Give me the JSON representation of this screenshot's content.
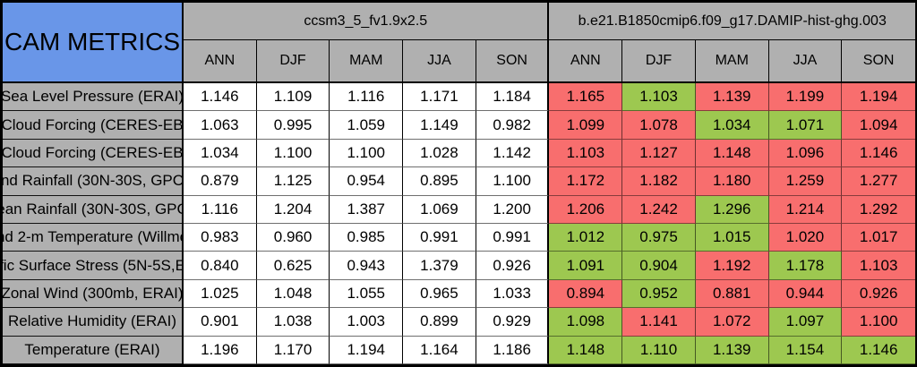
{
  "title": "CAM METRICS",
  "colors": {
    "title_blue": "#6996e8",
    "panel_gray": "#b0b0b0",
    "worse_red": "#f86e6e",
    "better_green": "#9dc850"
  },
  "chart_data": {
    "type": "table",
    "title": "CAM METRICS",
    "groups": [
      {
        "name": "ccsm3_5_fv1.9x2.5",
        "seasons": [
          "ANN",
          "DJF",
          "MAM",
          "JJA",
          "SON"
        ]
      },
      {
        "name": "b.e21.B1850cmip6.f09_g17.DAMIP-hist-ghg.003",
        "seasons": [
          "ANN",
          "DJF",
          "MAM",
          "JJA",
          "SON"
        ]
      }
    ],
    "cell_color_legend": {
      "red": "#f86e6e",
      "green": "#9dc850"
    },
    "rows": [
      {
        "label": "Sea Level Pressure (ERAI)",
        "model1": [
          "1.146",
          "1.109",
          "1.116",
          "1.171",
          "1.184"
        ],
        "model2": [
          {
            "v": "1.165",
            "c": "red"
          },
          {
            "v": "1.103",
            "c": "green"
          },
          {
            "v": "1.139",
            "c": "red"
          },
          {
            "v": "1.199",
            "c": "red"
          },
          {
            "v": "1.194",
            "c": "red"
          }
        ]
      },
      {
        "label": "Cloud Forcing (CERES-EB",
        "model1": [
          "1.063",
          "0.995",
          "1.059",
          "1.149",
          "0.982"
        ],
        "model2": [
          {
            "v": "1.099",
            "c": "red"
          },
          {
            "v": "1.078",
            "c": "red"
          },
          {
            "v": "1.034",
            "c": "green"
          },
          {
            "v": "1.071",
            "c": "green"
          },
          {
            "v": "1.094",
            "c": "red"
          }
        ]
      },
      {
        "label": "Cloud Forcing (CERES-EB",
        "model1": [
          "1.034",
          "1.100",
          "1.100",
          "1.028",
          "1.142"
        ],
        "model2": [
          {
            "v": "1.103",
            "c": "red"
          },
          {
            "v": "1.127",
            "c": "red"
          },
          {
            "v": "1.148",
            "c": "red"
          },
          {
            "v": "1.096",
            "c": "red"
          },
          {
            "v": "1.146",
            "c": "red"
          }
        ]
      },
      {
        "label": "nd Rainfall (30N-30S, GPC",
        "model1": [
          "0.879",
          "1.125",
          "0.954",
          "0.895",
          "1.100"
        ],
        "model2": [
          {
            "v": "1.172",
            "c": "red"
          },
          {
            "v": "1.182",
            "c": "red"
          },
          {
            "v": "1.180",
            "c": "red"
          },
          {
            "v": "1.259",
            "c": "red"
          },
          {
            "v": "1.277",
            "c": "red"
          }
        ]
      },
      {
        "label": "ean Rainfall (30N-30S, GPC",
        "model1": [
          "1.116",
          "1.204",
          "1.387",
          "1.069",
          "1.200"
        ],
        "model2": [
          {
            "v": "1.206",
            "c": "red"
          },
          {
            "v": "1.242",
            "c": "red"
          },
          {
            "v": "1.296",
            "c": "green"
          },
          {
            "v": "1.214",
            "c": "red"
          },
          {
            "v": "1.292",
            "c": "red"
          }
        ]
      },
      {
        "label": "nd 2-m Temperature (Willmo",
        "model1": [
          "0.983",
          "0.960",
          "0.985",
          "0.991",
          "0.991"
        ],
        "model2": [
          {
            "v": "1.012",
            "c": "green"
          },
          {
            "v": "0.975",
            "c": "green"
          },
          {
            "v": "1.015",
            "c": "green"
          },
          {
            "v": "1.020",
            "c": "red"
          },
          {
            "v": "1.017",
            "c": "red"
          }
        ]
      },
      {
        "label": "fic Surface Stress (5N-5S,E",
        "model1": [
          "0.840",
          "0.625",
          "0.943",
          "1.379",
          "0.926"
        ],
        "model2": [
          {
            "v": "1.091",
            "c": "green"
          },
          {
            "v": "0.904",
            "c": "green"
          },
          {
            "v": "1.192",
            "c": "red"
          },
          {
            "v": "1.178",
            "c": "green"
          },
          {
            "v": "1.103",
            "c": "red"
          }
        ]
      },
      {
        "label": "Zonal Wind (300mb, ERAI)",
        "model1": [
          "1.025",
          "1.048",
          "1.055",
          "0.965",
          "1.033"
        ],
        "model2": [
          {
            "v": "0.894",
            "c": "red"
          },
          {
            "v": "0.952",
            "c": "green"
          },
          {
            "v": "0.881",
            "c": "red"
          },
          {
            "v": "0.944",
            "c": "red"
          },
          {
            "v": "0.926",
            "c": "red"
          }
        ]
      },
      {
        "label": "Relative Humidity (ERAI)",
        "model1": [
          "0.901",
          "1.038",
          "1.003",
          "0.899",
          "0.929"
        ],
        "model2": [
          {
            "v": "1.098",
            "c": "green"
          },
          {
            "v": "1.141",
            "c": "red"
          },
          {
            "v": "1.072",
            "c": "red"
          },
          {
            "v": "1.097",
            "c": "green"
          },
          {
            "v": "1.100",
            "c": "red"
          }
        ]
      },
      {
        "label": "Temperature (ERAI)",
        "model1": [
          "1.196",
          "1.170",
          "1.194",
          "1.164",
          "1.186"
        ],
        "model2": [
          {
            "v": "1.148",
            "c": "green"
          },
          {
            "v": "1.110",
            "c": "green"
          },
          {
            "v": "1.139",
            "c": "green"
          },
          {
            "v": "1.154",
            "c": "green"
          },
          {
            "v": "1.146",
            "c": "green"
          }
        ]
      }
    ]
  }
}
